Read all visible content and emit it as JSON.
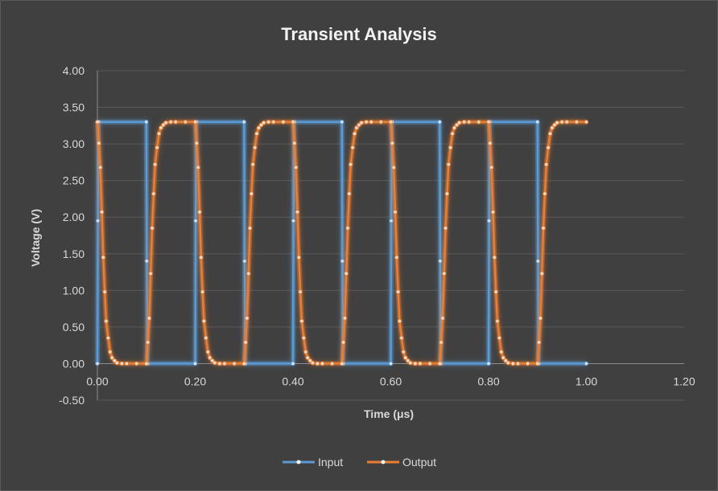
{
  "chart_data": {
    "type": "scatter",
    "title": "Transient Analysis",
    "xlabel": "Time (μs)",
    "ylabel": "Voltage (V)",
    "xlim": [
      0,
      1.2
    ],
    "ylim": [
      -0.5,
      4.0
    ],
    "x_ticks": [
      "0.00",
      "0.20",
      "0.40",
      "0.60",
      "0.80",
      "1.00",
      "1.20"
    ],
    "y_ticks": [
      "4.00",
      "3.50",
      "3.00",
      "2.50",
      "2.00",
      "1.50",
      "1.00",
      "0.50",
      "0.00",
      "-0.50"
    ],
    "grid": true,
    "legend": "bottom",
    "series": [
      {
        "name": "Input",
        "color": "#5b9bd5",
        "x": [
          0,
          0.001,
          0.002,
          0.003,
          0.1,
          0.101,
          0.102,
          0.103,
          0.2,
          0.201,
          0.202,
          0.203,
          0.3,
          0.301,
          0.302,
          0.303,
          0.4,
          0.401,
          0.402,
          0.403,
          0.5,
          0.501,
          0.502,
          0.503,
          0.6,
          0.601,
          0.602,
          0.603,
          0.7,
          0.701,
          0.702,
          0.703,
          0.8,
          0.801,
          0.802,
          0.803,
          0.9,
          0.901,
          0.902,
          0.903,
          1.0
        ],
        "y": [
          0,
          1.95,
          3.3,
          3.3,
          3.3,
          1.4,
          0,
          0,
          0,
          1.95,
          3.3,
          3.3,
          3.3,
          1.4,
          0,
          0,
          0,
          1.95,
          3.3,
          3.3,
          3.3,
          1.4,
          0,
          0,
          0,
          1.95,
          3.3,
          3.3,
          3.3,
          1.4,
          0,
          0,
          0,
          1.95,
          3.3,
          3.3,
          3.3,
          1.4,
          0,
          0,
          0
        ]
      },
      {
        "name": "Output",
        "color": "#ed7d31",
        "x": [
          0,
          0.003,
          0.006,
          0.009,
          0.012,
          0.015,
          0.018,
          0.022,
          0.026,
          0.03,
          0.035,
          0.04,
          0.05,
          0.06,
          0.08,
          0.1,
          0.103,
          0.106,
          0.109,
          0.112,
          0.115,
          0.118,
          0.122,
          0.126,
          0.13,
          0.135,
          0.14,
          0.15,
          0.16,
          0.18,
          0.2,
          0.203,
          0.206,
          0.209,
          0.212,
          0.215,
          0.218,
          0.222,
          0.226,
          0.23,
          0.235,
          0.24,
          0.25,
          0.26,
          0.28,
          0.3,
          0.303,
          0.306,
          0.309,
          0.312,
          0.315,
          0.318,
          0.322,
          0.326,
          0.33,
          0.335,
          0.34,
          0.35,
          0.36,
          0.38,
          0.4,
          0.403,
          0.406,
          0.409,
          0.412,
          0.415,
          0.418,
          0.422,
          0.426,
          0.43,
          0.435,
          0.44,
          0.45,
          0.46,
          0.48,
          0.5,
          0.503,
          0.506,
          0.509,
          0.512,
          0.515,
          0.518,
          0.522,
          0.526,
          0.53,
          0.535,
          0.54,
          0.55,
          0.56,
          0.58,
          0.6,
          0.603,
          0.606,
          0.609,
          0.612,
          0.615,
          0.618,
          0.622,
          0.626,
          0.63,
          0.635,
          0.64,
          0.65,
          0.66,
          0.68,
          0.7,
          0.703,
          0.706,
          0.709,
          0.712,
          0.715,
          0.718,
          0.722,
          0.726,
          0.73,
          0.735,
          0.74,
          0.75,
          0.76,
          0.78,
          0.8,
          0.803,
          0.806,
          0.809,
          0.812,
          0.815,
          0.818,
          0.822,
          0.826,
          0.83,
          0.835,
          0.84,
          0.85,
          0.86,
          0.88,
          0.9,
          0.903,
          0.906,
          0.909,
          0.912,
          0.915,
          0.918,
          0.922,
          0.926,
          0.93,
          0.935,
          0.94,
          0.95,
          0.96,
          0.98,
          1.0
        ],
        "y": [
          3.3,
          3.01,
          2.68,
          2.07,
          1.45,
          0.98,
          0.58,
          0.35,
          0.16,
          0.08,
          0.04,
          0.01,
          0.0,
          0.0,
          0.0,
          0.0,
          0.29,
          0.62,
          1.23,
          1.85,
          2.32,
          2.72,
          2.95,
          3.14,
          3.22,
          3.26,
          3.29,
          3.3,
          3.3,
          3.3,
          3.3,
          3.01,
          2.68,
          2.07,
          1.45,
          0.98,
          0.58,
          0.35,
          0.16,
          0.08,
          0.04,
          0.01,
          0.0,
          0.0,
          0.0,
          0.0,
          0.29,
          0.62,
          1.23,
          1.85,
          2.32,
          2.72,
          2.95,
          3.14,
          3.22,
          3.26,
          3.29,
          3.3,
          3.3,
          3.3,
          3.3,
          3.01,
          2.68,
          2.07,
          1.45,
          0.98,
          0.58,
          0.35,
          0.16,
          0.08,
          0.04,
          0.01,
          0.0,
          0.0,
          0.0,
          0.0,
          0.29,
          0.62,
          1.23,
          1.85,
          2.32,
          2.72,
          2.95,
          3.14,
          3.22,
          3.26,
          3.29,
          3.3,
          3.3,
          3.3,
          3.3,
          3.01,
          2.68,
          2.07,
          1.45,
          0.98,
          0.58,
          0.35,
          0.16,
          0.08,
          0.04,
          0.01,
          0.0,
          0.0,
          0.0,
          0.0,
          0.29,
          0.62,
          1.23,
          1.85,
          2.32,
          2.72,
          2.95,
          3.14,
          3.22,
          3.26,
          3.29,
          3.3,
          3.3,
          3.3,
          3.3,
          3.01,
          2.68,
          2.07,
          1.45,
          0.98,
          0.58,
          0.35,
          0.16,
          0.08,
          0.04,
          0.01,
          0.0,
          0.0,
          0.0,
          0.0,
          0.29,
          0.62,
          1.23,
          1.85,
          2.32,
          2.72,
          2.95,
          3.14,
          3.22,
          3.26,
          3.29,
          3.3,
          3.3,
          3.3,
          3.3
        ]
      }
    ]
  }
}
